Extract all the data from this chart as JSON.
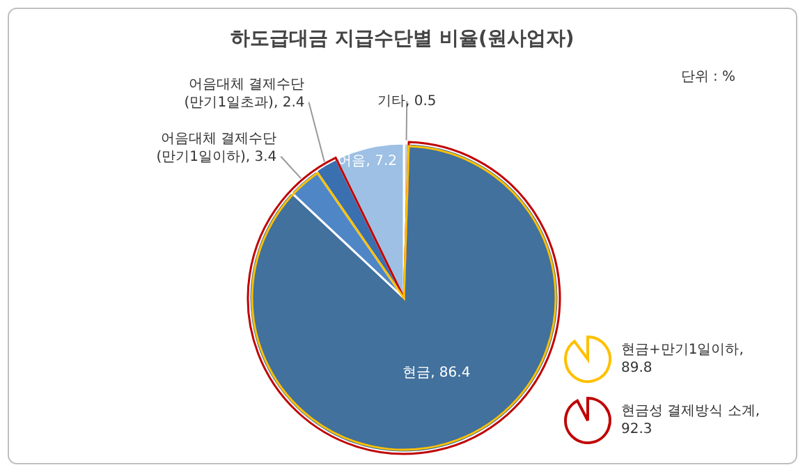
{
  "chart_data": {
    "type": "pie",
    "title": "하도급대금 지급수단별 비율(원사업자)",
    "categories": [
      "기타",
      "현금",
      "어음대체 결제수단\n(만기1일이하)",
      "어음대체 결제수단\n(만기1일초과)",
      "어음"
    ],
    "values": [
      0.5,
      86.4,
      3.4,
      2.4,
      7.2
    ],
    "colors": [
      "#c9c9c9",
      "#41719c",
      "#4f86c6",
      "#3a6fb0",
      "#9dc0e4"
    ],
    "value_labels": [
      ", 0.5",
      ", 86.4",
      ", 3.4",
      ", 2.4",
      ", 7.2"
    ],
    "annotations": [
      "단위 : %",
      "현금+만기1일이하, 89.8",
      "현금성 결제방식 소계, 92.3"
    ]
  }
}
